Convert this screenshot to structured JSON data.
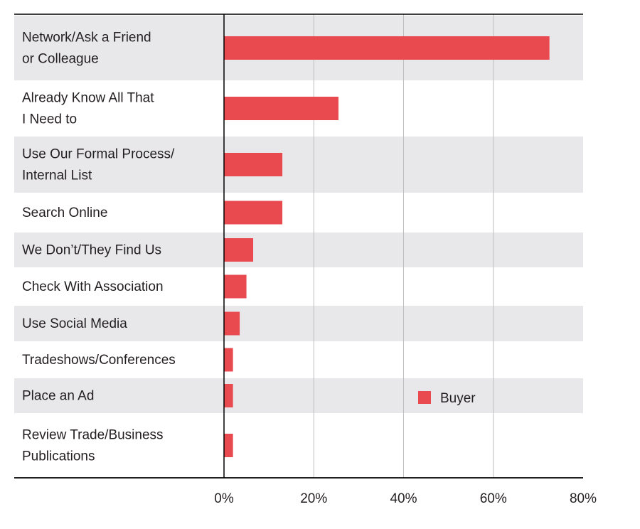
{
  "chart_data": {
    "type": "bar",
    "orientation": "horizontal",
    "categories": [
      [
        "Network/Ask a Friend",
        "or Colleague"
      ],
      [
        "Already Know All That",
        "I Need to"
      ],
      [
        "Use Our Formal Process/",
        "Internal List"
      ],
      [
        "Search Online"
      ],
      [
        "We Don’t/They Find Us"
      ],
      [
        "Check With Association"
      ],
      [
        "Use Social Media"
      ],
      [
        "Tradeshows/Conferences"
      ],
      [
        "Place an Ad"
      ],
      [
        "Review Trade/Business",
        "Publications"
      ]
    ],
    "series": [
      {
        "name": "Buyer",
        "values": [
          72.5,
          25.5,
          13,
          13,
          6.5,
          5,
          3.5,
          2,
          2,
          2
        ]
      }
    ],
    "x_ticks": [
      "0%",
      "20%",
      "40%",
      "60%",
      "80%"
    ],
    "xlim": [
      0,
      80
    ],
    "grid": true,
    "legend_position": "lower-right",
    "colors": {
      "bar": "#e84a4f",
      "band": "#e8e8ea",
      "grid": "#bdbdbd",
      "axis": "#000000"
    }
  }
}
